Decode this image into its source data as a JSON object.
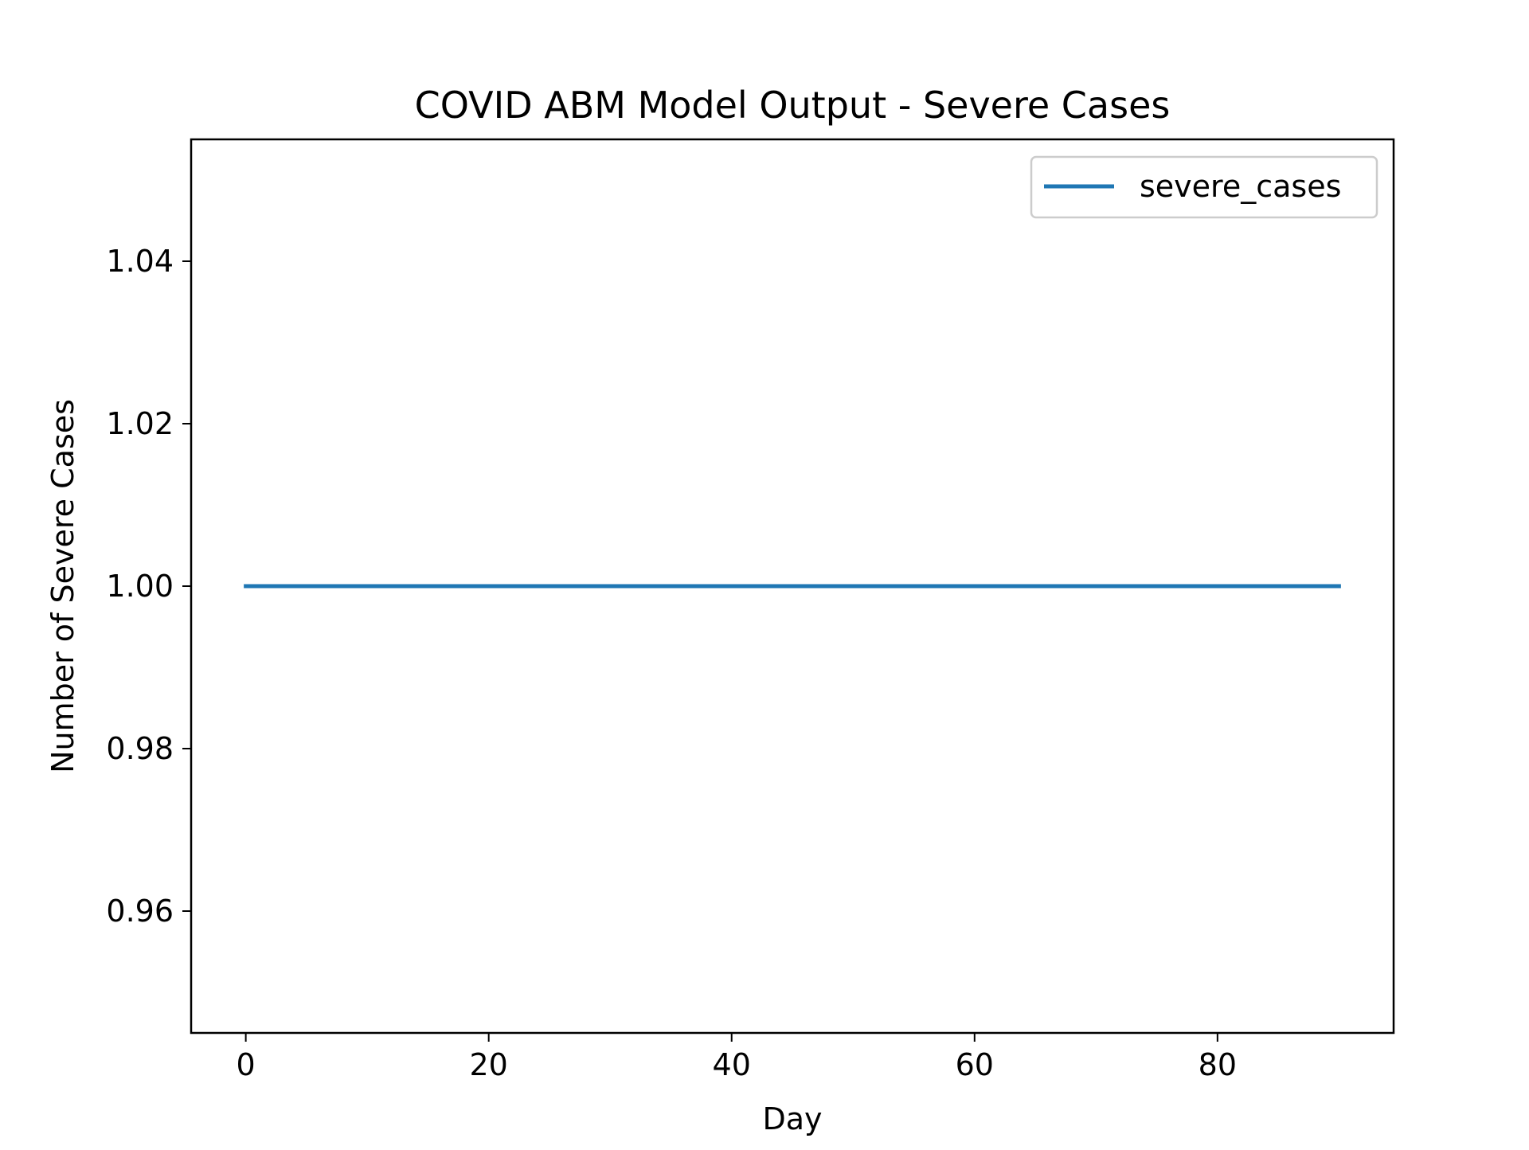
{
  "chart_data": {
    "type": "line",
    "title": "COVID ABM Model Output - Severe Cases",
    "xlabel": "Day",
    "ylabel": "Number of Severe Cases",
    "xlim": [
      -4.5,
      94.5
    ],
    "ylim": [
      0.945,
      1.055
    ],
    "xticks": [
      0,
      20,
      40,
      60,
      80
    ],
    "xtick_labels": [
      "0",
      "20",
      "40",
      "60",
      "80"
    ],
    "yticks": [
      0.96,
      0.98,
      1.0,
      1.02,
      1.04
    ],
    "ytick_labels": [
      "0.96",
      "0.98",
      "1.00",
      "1.02",
      "1.04"
    ],
    "grid": false,
    "legend": {
      "position": "top-right",
      "entries": [
        "severe_cases"
      ]
    },
    "series": [
      {
        "name": "severe_cases",
        "color": "#1f77b4",
        "x": [
          0,
          90
        ],
        "y": [
          1.0,
          1.0
        ]
      }
    ]
  }
}
